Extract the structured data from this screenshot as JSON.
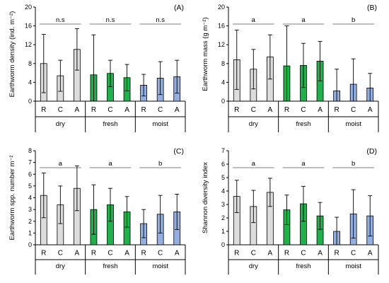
{
  "colors": {
    "dry": "#dcdcdc",
    "fresh": "#1fb24a",
    "moist": "#93aee0",
    "axis": "#000000",
    "bracket": "#7f7f7f"
  },
  "chart_data": [
    {
      "panel": "(A)",
      "type": "bar",
      "ylabel": "Earthworm density (ind. m⁻²)",
      "ylim": [
        0,
        20
      ],
      "yticks": [
        "0",
        "4",
        "8",
        "12",
        "16",
        "20"
      ],
      "groups": [
        "dry",
        "fresh",
        "moist"
      ],
      "categories": [
        "R",
        "C",
        "A"
      ],
      "significance": [
        "n.s",
        "n.s",
        "n.s"
      ],
      "values": [
        [
          8.0,
          5.4,
          11.0
        ],
        [
          5.6,
          5.9,
          5.0
        ],
        [
          3.4,
          4.9,
          5.2
        ]
      ],
      "errors": [
        [
          6.2,
          3.3,
          4.4
        ],
        [
          8.5,
          2.8,
          2.8
        ],
        [
          2.3,
          3.5,
          3.5
        ]
      ]
    },
    {
      "panel": "(B)",
      "type": "bar",
      "ylabel": "Earthworm mass (g m⁻²)",
      "ylim": [
        0,
        20
      ],
      "yticks": [
        "0",
        "4",
        "8",
        "12",
        "16",
        "20"
      ],
      "groups": [
        "dry",
        "fresh",
        "moist"
      ],
      "categories": [
        "R",
        "C",
        "A"
      ],
      "significance": [
        "a",
        "a",
        "b"
      ],
      "values": [
        [
          8.8,
          6.8,
          9.4
        ],
        [
          7.5,
          7.6,
          8.5
        ],
        [
          2.2,
          3.6,
          2.8
        ]
      ],
      "errors": [
        [
          6.3,
          4.2,
          4.7
        ],
        [
          8.5,
          4.7,
          4.2
        ],
        [
          4.6,
          5.4,
          3.1
        ]
      ]
    },
    {
      "panel": "(C)",
      "type": "bar",
      "ylabel": "Earthworm spp. number m⁻²",
      "ylim": [
        0,
        8
      ],
      "yticks": [
        "0",
        "1",
        "2",
        "3",
        "4",
        "5",
        "6",
        "7",
        "8"
      ],
      "groups": [
        "dry",
        "fresh",
        "moist"
      ],
      "categories": [
        "R",
        "C",
        "A"
      ],
      "significance": [
        "a",
        "a",
        "b"
      ],
      "values": [
        [
          4.2,
          3.4,
          4.8
        ],
        [
          3.0,
          3.4,
          2.8
        ],
        [
          1.8,
          2.6,
          2.8
        ]
      ],
      "errors": [
        [
          1.9,
          1.6,
          1.9
        ],
        [
          2.1,
          1.4,
          1.3
        ],
        [
          1.2,
          1.6,
          1.5
        ]
      ]
    },
    {
      "panel": "(D)",
      "type": "bar",
      "ylabel": "Shannon diversity index",
      "ylim": [
        0,
        7
      ],
      "yticks": [
        "0",
        "1",
        "2",
        "3",
        "4",
        "5",
        "6",
        "7"
      ],
      "groups": [
        "dry",
        "fresh",
        "moist"
      ],
      "categories": [
        "R",
        "C",
        "A"
      ],
      "significance": [
        "a",
        "a",
        "b"
      ],
      "values": [
        [
          3.6,
          2.85,
          3.9
        ],
        [
          2.6,
          3.05,
          2.15
        ],
        [
          1.0,
          2.3,
          2.15
        ]
      ],
      "errors": [
        [
          1.2,
          1.2,
          1.05
        ],
        [
          1.1,
          1.3,
          1.0
        ],
        [
          1.05,
          1.8,
          1.5
        ]
      ]
    }
  ]
}
